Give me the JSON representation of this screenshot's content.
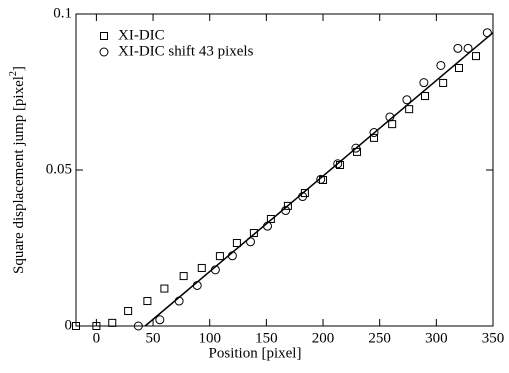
{
  "chart_data": {
    "type": "scatter",
    "xlabel": "Position [pixel]",
    "ylabel": [
      "Square displacement jump [pixel",
      "2",
      "]"
    ],
    "xlim": [
      -18,
      350
    ],
    "xticks": [
      0,
      50,
      100,
      150,
      200,
      250,
      300,
      350
    ],
    "ylim": [
      0,
      0.1
    ],
    "yticks": [
      0,
      0.05,
      0.1
    ],
    "legend": "top-left",
    "series": [
      {
        "name": "XI-DIC",
        "marker": "square",
        "color": "#000000",
        "x": [
          -18,
          0,
          14,
          28,
          45,
          60,
          77,
          93,
          109,
          124,
          139,
          154,
          169,
          184,
          200,
          215,
          230,
          245,
          261,
          276,
          290,
          306,
          320,
          335
        ],
        "values": [
          0,
          0,
          0.001,
          0.0048,
          0.008,
          0.012,
          0.016,
          0.0186,
          0.0224,
          0.0266,
          0.0298,
          0.0343,
          0.0385,
          0.0426,
          0.0468,
          0.0516,
          0.0558,
          0.0603,
          0.0647,
          0.0695,
          0.0737,
          0.0779,
          0.0827,
          0.0865
        ]
      },
      {
        "name": "XI-DIC shift 43 pixels",
        "marker": "circle",
        "color": "#000000",
        "x": [
          37,
          56,
          73,
          89,
          105,
          120,
          136,
          151,
          167,
          182,
          198,
          213,
          229,
          245,
          259,
          274,
          289,
          304,
          319,
          328,
          345
        ],
        "values": [
          0,
          0.002,
          0.008,
          0.013,
          0.018,
          0.0225,
          0.027,
          0.032,
          0.037,
          0.0415,
          0.047,
          0.052,
          0.057,
          0.062,
          0.067,
          0.0725,
          0.078,
          0.0835,
          0.089,
          0.089,
          0.094
        ]
      },
      {
        "marker": "line",
        "color": "#000000",
        "x": [
          43,
          350
        ],
        "values": [
          0,
          0.094
        ]
      }
    ]
  }
}
